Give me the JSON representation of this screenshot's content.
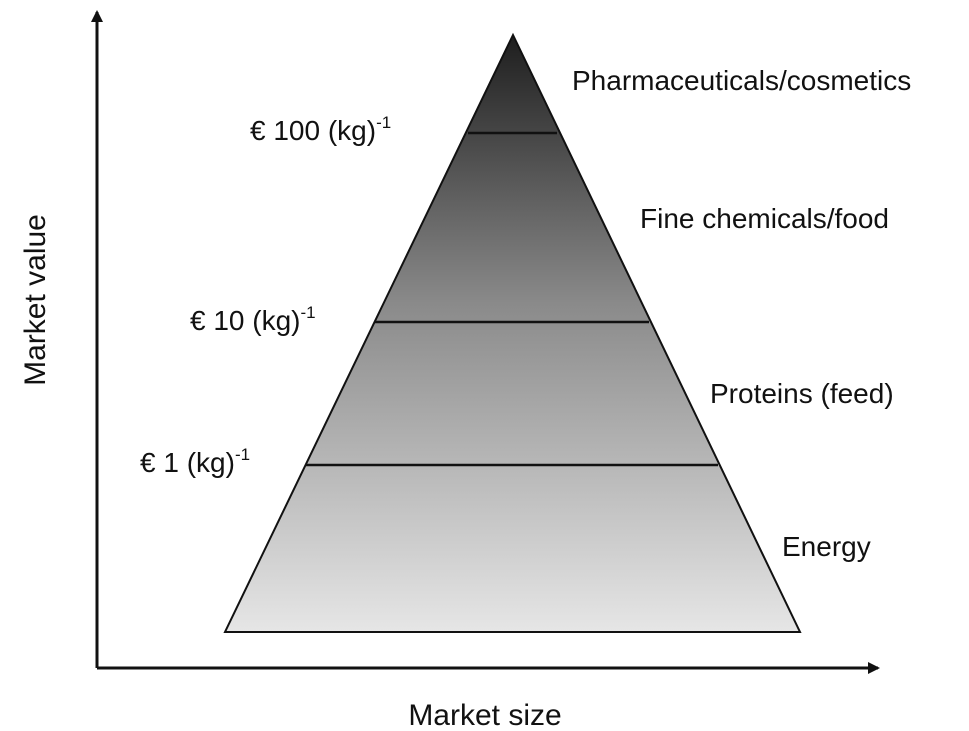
{
  "axes": {
    "y_label": "Market value",
    "x_label": "Market size"
  },
  "tiers": [
    "Pharmaceuticals/cosmetics",
    "Fine chemicals/food",
    "Proteins (feed)",
    "Energy"
  ],
  "prices": [
    {
      "text": "€ 100 (kg)",
      "exponent": "-1"
    },
    {
      "text": "€ 10 (kg)",
      "exponent": "-1"
    },
    {
      "text": "€ 1 (kg)",
      "exponent": "-1"
    }
  ]
}
